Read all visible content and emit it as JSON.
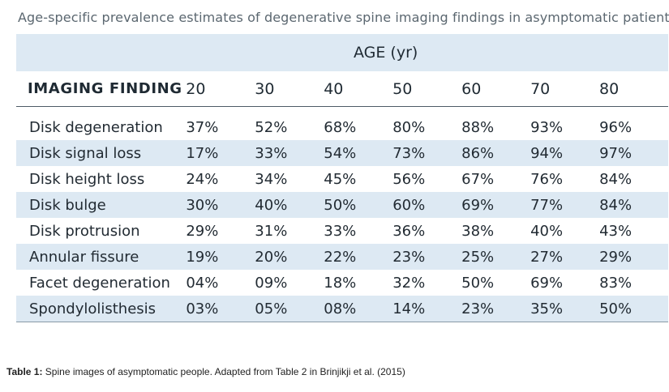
{
  "caption_top": "Age-specific prevalence estimates of degenerative spine imaging findings in asymptomatic patients.",
  "table": {
    "age_header": "AGE (yr)",
    "finding_header": "IMAGING FINDING",
    "ages": [
      "20",
      "30",
      "40",
      "50",
      "60",
      "70",
      "80"
    ],
    "rows": [
      {
        "finding": "Disk degeneration",
        "values": [
          "37%",
          "52%",
          "68%",
          "80%",
          "88%",
          "93%",
          "96%"
        ]
      },
      {
        "finding": "Disk signal loss",
        "values": [
          "17%",
          "33%",
          "54%",
          "73%",
          "86%",
          "94%",
          "97%"
        ]
      },
      {
        "finding": "Disk height loss",
        "values": [
          "24%",
          "34%",
          "45%",
          "56%",
          "67%",
          "76%",
          "84%"
        ]
      },
      {
        "finding": "Disk bulge",
        "values": [
          "30%",
          "40%",
          "50%",
          "60%",
          "69%",
          "77%",
          "84%"
        ]
      },
      {
        "finding": "Disk protrusion",
        "values": [
          "29%",
          "31%",
          "33%",
          "36%",
          "38%",
          "40%",
          "43%"
        ]
      },
      {
        "finding": "Annular fissure",
        "values": [
          "19%",
          "20%",
          "22%",
          "23%",
          "25%",
          "27%",
          "29%"
        ]
      },
      {
        "finding": "Facet degeneration",
        "values": [
          "04%",
          "09%",
          "18%",
          "32%",
          "50%",
          "69%",
          "83%"
        ]
      },
      {
        "finding": "Spondylolisthesis",
        "values": [
          "03%",
          "05%",
          "08%",
          "14%",
          "23%",
          "35%",
          "50%"
        ]
      }
    ]
  },
  "caption_bottom": {
    "label": "Table 1:",
    "text": " Spine images of asymptomatic people. Adapted from Table 2 in Brinjikji et al. (2015)"
  }
}
